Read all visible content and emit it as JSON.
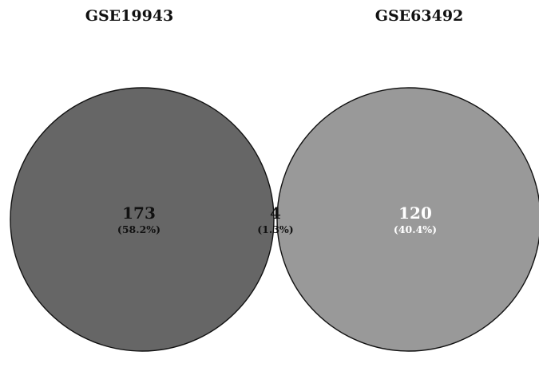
{
  "venn": {
    "sets": [
      {
        "label": "GSE19943",
        "color": "#666666"
      },
      {
        "label": "GSE63492",
        "color": "#999999"
      }
    ],
    "intersection_color": "#fcfcfc",
    "outline_color": "#111111",
    "regions": {
      "left_only": {
        "count": "173",
        "percent": "(58.2%)",
        "text_color": "#111111"
      },
      "both": {
        "count": "4",
        "percent": "(1.3%)",
        "text_color": "#111111"
      },
      "right_only": {
        "count": "120",
        "percent": "(40.4%)",
        "text_color": "#ffffff"
      }
    }
  }
}
